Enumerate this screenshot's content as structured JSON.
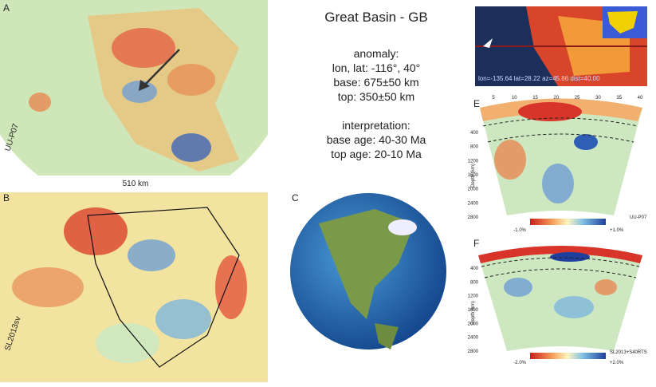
{
  "panels": {
    "a": {
      "label": "A",
      "scale": "510 km",
      "model": "UU-P07"
    },
    "b": {
      "label": "B",
      "model": "SL2013sv"
    },
    "c": {
      "label": "C"
    },
    "d": {
      "caption": "lon=-135.64 lat=28.22 az=45.86 dist=40.00"
    },
    "e": {
      "label": "E",
      "distance_ticks": [
        5,
        10,
        15,
        20,
        25,
        30,
        35,
        40
      ],
      "depth_ticks": [
        400,
        800,
        1200,
        1600,
        2000,
        2400,
        2800
      ],
      "depth_axis": "Depth (km)",
      "scale_min": "-1.0%",
      "scale_max": "+1.0%",
      "model": "UU-P07"
    },
    "f": {
      "label": "F",
      "depth_ticks": [
        400,
        800,
        1200,
        1600,
        2000,
        2400,
        2800
      ],
      "depth_axis": "Depth (km)",
      "scale_min": "-2.0%",
      "scale_max": "+2.0%",
      "model": "SL2013+S40RTS"
    }
  },
  "info": {
    "title": "Great Basin - GB",
    "anomaly_heading": "anomaly:",
    "location": "lon, lat: -116°, 40°",
    "base": "base: 675±50 km",
    "top": "top: 350±50 km",
    "interpretation_heading": "interpretation:",
    "base_age": "base age: 40-30 Ma",
    "top_age": "top age: 20-10 Ma"
  }
}
